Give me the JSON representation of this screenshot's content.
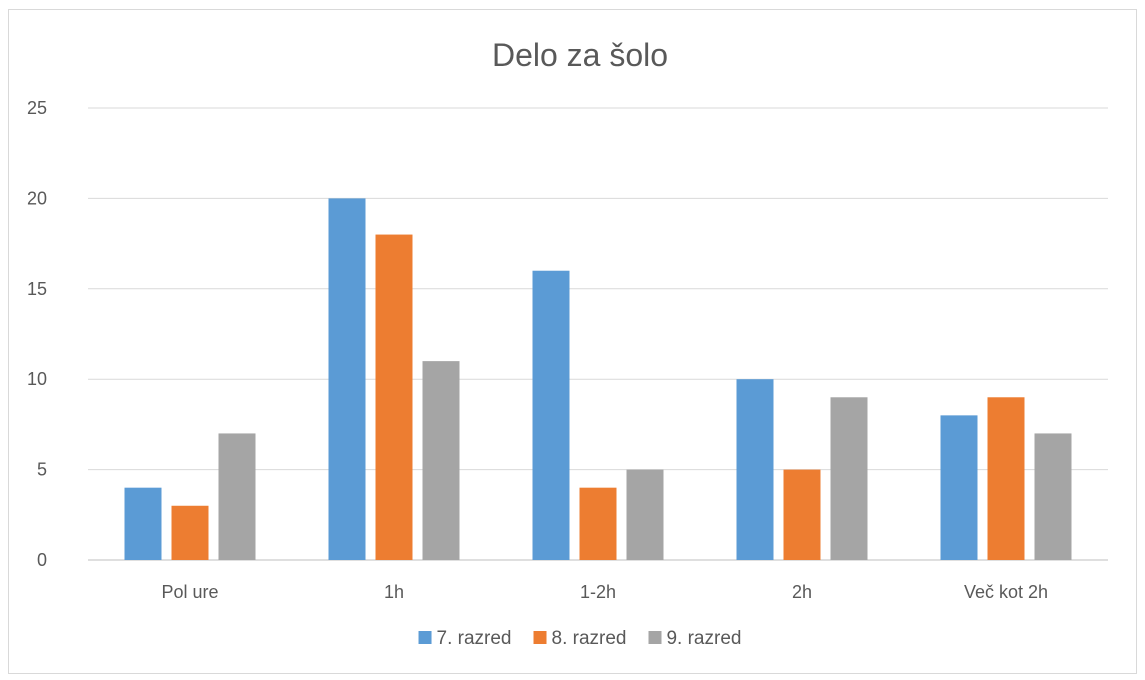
{
  "chart_data": {
    "type": "bar",
    "title": "Delo za šolo",
    "xlabel": "",
    "ylabel": "",
    "categories": [
      "Pol ure",
      "1h",
      "1-2h",
      "2h",
      "Več kot 2h"
    ],
    "series": [
      {
        "name": "7. razred",
        "values": [
          4,
          20,
          16,
          10,
          8
        ],
        "color": "#5B9BD5"
      },
      {
        "name": "8. razred",
        "values": [
          3,
          18,
          4,
          5,
          9
        ],
        "color": "#ED7D31"
      },
      {
        "name": "9. razred",
        "values": [
          7,
          11,
          5,
          9,
          7
        ],
        "color": "#A5A5A5"
      }
    ],
    "ylim": [
      0,
      25
    ],
    "yticks": [
      "0",
      "5",
      "10",
      "15",
      "20",
      "25"
    ],
    "grid": true,
    "legend": "bottom"
  }
}
